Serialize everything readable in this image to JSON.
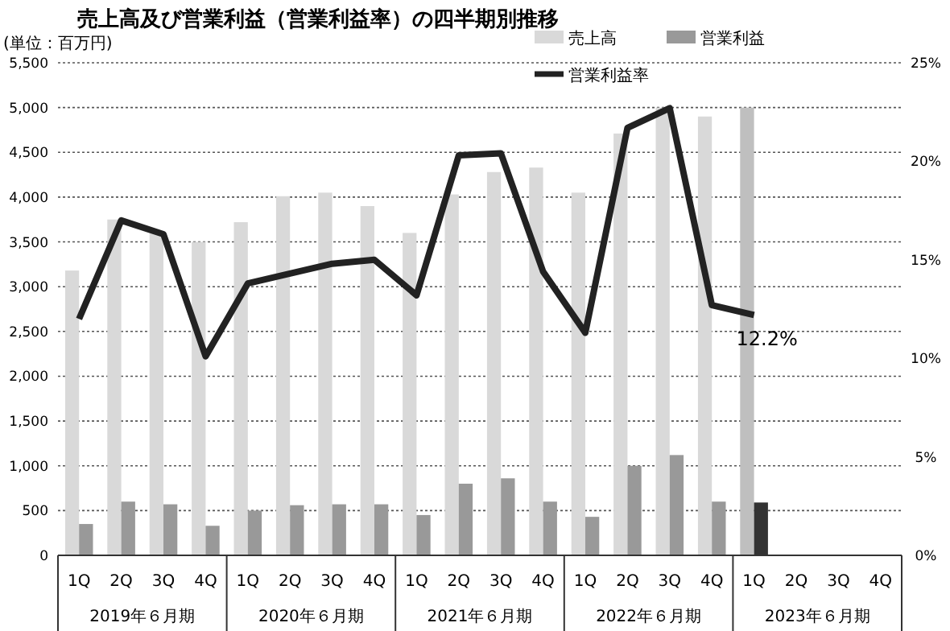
{
  "chart_data": {
    "type": "bar",
    "title": "売上高及び営業利益（営業利益率）の四半期別推移",
    "ylabel": "(単位：百万円)",
    "categories": [
      "1Q",
      "2Q",
      "3Q",
      "4Q",
      "1Q",
      "2Q",
      "3Q",
      "4Q",
      "1Q",
      "2Q",
      "3Q",
      "4Q",
      "1Q",
      "2Q",
      "3Q",
      "4Q",
      "1Q",
      "2Q",
      "3Q",
      "4Q"
    ],
    "annotations": [
      "2019年６月期",
      "2020年６月期",
      "2021年６月期",
      "2022年６月期",
      "2023年６月期"
    ],
    "series": [
      {
        "name": "売上高",
        "color": "#d9d9d9",
        "colors": [
          "#d9d9d9",
          "#d9d9d9",
          "#d9d9d9",
          "#d9d9d9",
          "#d9d9d9",
          "#d9d9d9",
          "#d9d9d9",
          "#d9d9d9",
          "#d9d9d9",
          "#d9d9d9",
          "#d9d9d9",
          "#d9d9d9",
          "#d9d9d9",
          "#d9d9d9",
          "#d9d9d9",
          "#d9d9d9",
          "#bfbfbf",
          null,
          null,
          null
        ],
        "values": [
          3180,
          3750,
          3600,
          3500,
          3720,
          4010,
          4050,
          3900,
          3600,
          4030,
          4280,
          4330,
          4050,
          4710,
          5000,
          4900,
          5000,
          null,
          null,
          null
        ]
      },
      {
        "name": "営業利益",
        "color": "#999999",
        "colors": [
          "#999999",
          "#999999",
          "#999999",
          "#999999",
          "#999999",
          "#999999",
          "#999999",
          "#999999",
          "#999999",
          "#999999",
          "#999999",
          "#999999",
          "#999999",
          "#999999",
          "#999999",
          "#999999",
          "#333333",
          null,
          null,
          null
        ],
        "values": [
          350,
          600,
          570,
          330,
          500,
          560,
          570,
          570,
          450,
          800,
          860,
          600,
          430,
          1000,
          1120,
          600,
          590,
          null,
          null,
          null
        ]
      },
      {
        "name": "営業利益率",
        "type": "line",
        "axis": "y2",
        "color": "#222222",
        "values": [
          12.0,
          17.0,
          16.3,
          10.1,
          13.8,
          14.3,
          14.8,
          15.0,
          13.2,
          20.3,
          20.4,
          14.4,
          11.3,
          21.7,
          22.7,
          12.7,
          12.2,
          null,
          null,
          null
        ],
        "value_labels": [
          null,
          null,
          null,
          null,
          null,
          null,
          null,
          null,
          null,
          null,
          null,
          null,
          null,
          null,
          null,
          null,
          "12.2%",
          null,
          null,
          null
        ]
      }
    ],
    "ylim": [
      0,
      5500
    ],
    "yticks": [
      {
        "value": 0,
        "label": "0"
      },
      {
        "value": 500,
        "label": "500"
      },
      {
        "value": 1000,
        "label": "1,000"
      },
      {
        "value": 1500,
        "label": "1,500"
      },
      {
        "value": 2000,
        "label": "2,000"
      },
      {
        "value": 2500,
        "label": "2,500"
      },
      {
        "value": 3000,
        "label": "3,000"
      },
      {
        "value": 3500,
        "label": "3,500"
      },
      {
        "value": 4000,
        "label": "4,000"
      },
      {
        "value": 4500,
        "label": "4,500"
      },
      {
        "value": 5000,
        "label": "5,000"
      },
      {
        "value": 5500,
        "label": "5,500"
      }
    ],
    "y2lim": [
      0,
      25
    ],
    "y2ticks": [
      {
        "value": 0,
        "label": "0%"
      },
      {
        "value": 5,
        "label": "5%"
      },
      {
        "value": 10,
        "label": "10%"
      },
      {
        "value": 15,
        "label": "15%"
      },
      {
        "value": 20,
        "label": "20%"
      },
      {
        "value": 25,
        "label": "25%"
      }
    ],
    "grid": "y",
    "legend": "top right"
  }
}
